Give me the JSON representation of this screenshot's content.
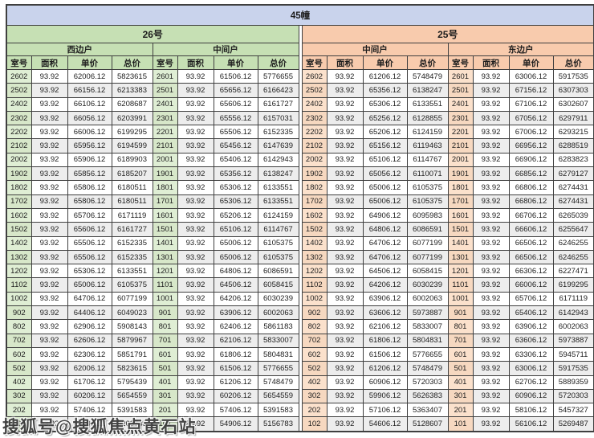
{
  "watermark_text": "搜狐号@搜狐焦点黄石站",
  "colors": {
    "title_bg": "#c9d3ec",
    "section_26_bg": "#c6e0b4",
    "section_26_tint": "#dfeed4",
    "section_25_bg": "#f8cbad",
    "section_25_tint": "#fbe1cc",
    "stripe": "#ededed",
    "border": "#3f3f3f"
  },
  "chart_data": {
    "type": "table",
    "title": "45幢",
    "columns": [
      "室号",
      "面积",
      "单价",
      "总价"
    ],
    "sections": [
      {
        "name": "26号",
        "theme": "green",
        "units": [
          {
            "name": "西边户",
            "rows": [
              [
                "2602",
                "93.92",
                "62006.12",
                "5823615"
              ],
              [
                "2502",
                "93.92",
                "66156.12",
                "6213383"
              ],
              [
                "2402",
                "93.92",
                "66106.12",
                "6208687"
              ],
              [
                "2302",
                "93.92",
                "66056.12",
                "6203991"
              ],
              [
                "2202",
                "93.92",
                "66006.12",
                "6199295"
              ],
              [
                "2102",
                "93.92",
                "65956.12",
                "6194599"
              ],
              [
                "2002",
                "93.92",
                "65906.12",
                "6189903"
              ],
              [
                "1902",
                "93.92",
                "65856.12",
                "6185207"
              ],
              [
                "1802",
                "93.92",
                "65806.12",
                "6180511"
              ],
              [
                "1702",
                "93.92",
                "65806.12",
                "6180511"
              ],
              [
                "1602",
                "93.92",
                "65706.12",
                "6171119"
              ],
              [
                "1502",
                "93.92",
                "65606.12",
                "6161727"
              ],
              [
                "1402",
                "93.92",
                "65506.12",
                "6152335"
              ],
              [
                "1302",
                "93.92",
                "65506.12",
                "6152335"
              ],
              [
                "1202",
                "93.92",
                "65306.12",
                "6133551"
              ],
              [
                "1102",
                "93.92",
                "65006.12",
                "6105375"
              ],
              [
                "1002",
                "93.92",
                "64706.12",
                "6077199"
              ],
              [
                "902",
                "93.92",
                "64406.12",
                "6049023"
              ],
              [
                "802",
                "93.92",
                "62906.12",
                "5908143"
              ],
              [
                "702",
                "93.92",
                "62606.12",
                "5879967"
              ],
              [
                "602",
                "93.92",
                "62306.12",
                "5851791"
              ],
              [
                "502",
                "93.92",
                "62006.12",
                "5823615"
              ],
              [
                "402",
                "93.92",
                "61706.12",
                "5795439"
              ],
              [
                "302",
                "93.92",
                "60206.12",
                "5654559"
              ],
              [
                "202",
                "93.92",
                "57406.12",
                "5391583"
              ],
              [
                "102",
                "93.92",
                "55406.12",
                "5203743"
              ]
            ]
          },
          {
            "name": "中间户",
            "rows": [
              [
                "2601",
                "93.92",
                "61506.12",
                "5776655"
              ],
              [
                "2501",
                "93.92",
                "65656.12",
                "6166423"
              ],
              [
                "2401",
                "93.92",
                "65606.12",
                "6161727"
              ],
              [
                "2301",
                "93.92",
                "65556.12",
                "6157031"
              ],
              [
                "2201",
                "93.92",
                "65506.12",
                "6152335"
              ],
              [
                "2101",
                "93.92",
                "65456.12",
                "6147639"
              ],
              [
                "2001",
                "93.92",
                "65406.12",
                "6142943"
              ],
              [
                "1901",
                "93.92",
                "65356.12",
                "6138247"
              ],
              [
                "1801",
                "93.92",
                "65306.12",
                "6133551"
              ],
              [
                "1701",
                "93.92",
                "65306.12",
                "6133551"
              ],
              [
                "1601",
                "93.92",
                "65206.12",
                "6124159"
              ],
              [
                "1501",
                "93.92",
                "65106.12",
                "6114767"
              ],
              [
                "1401",
                "93.92",
                "65006.12",
                "6105375"
              ],
              [
                "1301",
                "93.92",
                "65006.12",
                "6105375"
              ],
              [
                "1201",
                "93.92",
                "64806.12",
                "6086591"
              ],
              [
                "1101",
                "93.92",
                "64506.12",
                "6058415"
              ],
              [
                "1001",
                "93.92",
                "64206.12",
                "6030239"
              ],
              [
                "901",
                "93.92",
                "63906.12",
                "6002063"
              ],
              [
                "801",
                "93.92",
                "62406.12",
                "5861183"
              ],
              [
                "701",
                "93.92",
                "62106.12",
                "5833007"
              ],
              [
                "601",
                "93.92",
                "61806.12",
                "5804831"
              ],
              [
                "501",
                "93.92",
                "61506.12",
                "5776655"
              ],
              [
                "401",
                "93.92",
                "61206.12",
                "5748479"
              ],
              [
                "301",
                "93.92",
                "60206.12",
                "5654559"
              ],
              [
                "201",
                "93.92",
                "57406.12",
                "5391583"
              ],
              [
                "101",
                "93.92",
                "54906.12",
                "5156783"
              ]
            ]
          }
        ]
      },
      {
        "name": "25号",
        "theme": "peach",
        "units": [
          {
            "name": "中间户",
            "rows": [
              [
                "2602",
                "93.92",
                "61206.12",
                "5748479"
              ],
              [
                "2502",
                "93.92",
                "65356.12",
                "6138247"
              ],
              [
                "2402",
                "93.92",
                "65306.12",
                "6133551"
              ],
              [
                "2302",
                "93.92",
                "65256.12",
                "6128855"
              ],
              [
                "2202",
                "93.92",
                "65206.12",
                "6124159"
              ],
              [
                "2102",
                "93.92",
                "65156.12",
                "6119463"
              ],
              [
                "2002",
                "93.92",
                "65106.12",
                "6114767"
              ],
              [
                "1902",
                "93.92",
                "65056.12",
                "6110071"
              ],
              [
                "1802",
                "93.92",
                "65006.12",
                "6105375"
              ],
              [
                "1702",
                "93.92",
                "65006.12",
                "6105375"
              ],
              [
                "1602",
                "93.92",
                "64906.12",
                "6095983"
              ],
              [
                "1502",
                "93.92",
                "64806.12",
                "6086591"
              ],
              [
                "1402",
                "93.92",
                "64706.12",
                "6077199"
              ],
              [
                "1302",
                "93.92",
                "64706.12",
                "6077199"
              ],
              [
                "1202",
                "93.92",
                "64506.12",
                "6058415"
              ],
              [
                "1102",
                "93.92",
                "64206.12",
                "6030239"
              ],
              [
                "1002",
                "93.92",
                "63906.12",
                "6002063"
              ],
              [
                "902",
                "93.92",
                "63606.12",
                "5973887"
              ],
              [
                "802",
                "93.92",
                "62106.12",
                "5833007"
              ],
              [
                "702",
                "93.92",
                "61806.12",
                "5804831"
              ],
              [
                "602",
                "93.92",
                "61506.12",
                "5776655"
              ],
              [
                "502",
                "93.92",
                "61206.12",
                "5748479"
              ],
              [
                "402",
                "93.92",
                "60906.12",
                "5720303"
              ],
              [
                "302",
                "93.92",
                "59906.12",
                "5626383"
              ],
              [
                "202",
                "93.92",
                "57106.12",
                "5363407"
              ],
              [
                "102",
                "93.92",
                "54606.12",
                "5128607"
              ]
            ]
          },
          {
            "name": "东边户",
            "rows": [
              [
                "2601",
                "93.92",
                "63006.12",
                "5917535"
              ],
              [
                "2501",
                "93.92",
                "67156.12",
                "6307303"
              ],
              [
                "2401",
                "93.92",
                "67106.12",
                "6302607"
              ],
              [
                "2301",
                "93.92",
                "67056.12",
                "6297911"
              ],
              [
                "2201",
                "93.92",
                "67006.12",
                "6293215"
              ],
              [
                "2101",
                "93.92",
                "66956.12",
                "6288519"
              ],
              [
                "2001",
                "93.92",
                "66906.12",
                "6283823"
              ],
              [
                "1901",
                "93.92",
                "66856.12",
                "6279127"
              ],
              [
                "1801",
                "93.92",
                "66806.12",
                "6274431"
              ],
              [
                "1701",
                "93.92",
                "66806.12",
                "6274431"
              ],
              [
                "1601",
                "93.92",
                "66706.12",
                "6265039"
              ],
              [
                "1501",
                "93.92",
                "66606.12",
                "6255647"
              ],
              [
                "1401",
                "93.92",
                "66506.12",
                "6246255"
              ],
              [
                "1301",
                "93.92",
                "66506.12",
                "6246255"
              ],
              [
                "1201",
                "93.92",
                "66306.12",
                "6227471"
              ],
              [
                "1101",
                "93.92",
                "66006.12",
                "6199295"
              ],
              [
                "1001",
                "93.92",
                "65706.12",
                "6171119"
              ],
              [
                "901",
                "93.92",
                "65406.12",
                "6142943"
              ],
              [
                "801",
                "93.92",
                "63906.12",
                "6002063"
              ],
              [
                "701",
                "93.92",
                "63606.12",
                "5973887"
              ],
              [
                "601",
                "93.92",
                "63306.12",
                "5945711"
              ],
              [
                "501",
                "93.92",
                "63006.12",
                "5917535"
              ],
              [
                "401",
                "93.92",
                "62706.12",
                "5889359"
              ],
              [
                "301",
                "93.92",
                "60906.12",
                "5720303"
              ],
              [
                "201",
                "93.92",
                "58106.12",
                "5457327"
              ],
              [
                "101",
                "93.92",
                "56106.12",
                "5269487"
              ]
            ]
          }
        ]
      }
    ]
  }
}
